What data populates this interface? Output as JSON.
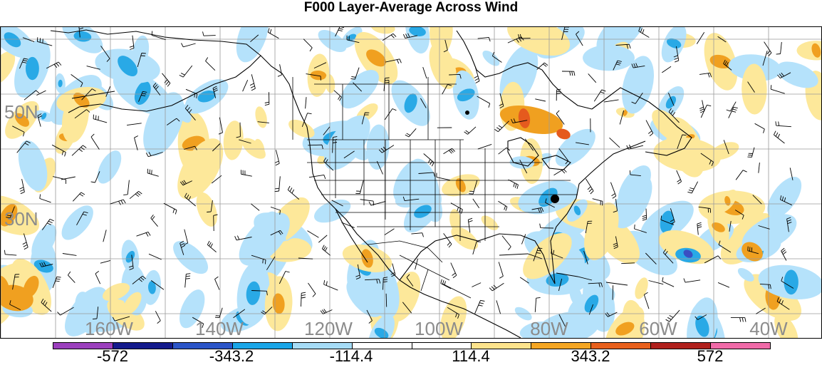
{
  "title": "F000 Layer-Average Across Wind",
  "map": {
    "lat_labels": [
      "50N",
      "30N"
    ],
    "lon_labels": [
      "160W",
      "140W",
      "120W",
      "100W",
      "80W",
      "60W",
      "40W"
    ]
  },
  "colorbar": {
    "labels": [
      "-572",
      "-343.2",
      "-114.4",
      "114.4",
      "343.2",
      "572"
    ],
    "colors": [
      "#9b3fbd",
      "#141a8c",
      "#2b55c8",
      "#1aa6e8",
      "#a6dcf7",
      "#ffffff",
      "#ffffff",
      "#fde38c",
      "#f5a623",
      "#e8601c",
      "#b0201c",
      "#f06aa8"
    ]
  },
  "colors": {
    "grid": "#9a9a9a",
    "coast": "#000000",
    "light_blue": "#b5e2fb",
    "blue": "#29a9e6",
    "dark_blue": "#3a4fc2",
    "light_yellow": "#fde89a",
    "orange": "#f0a020",
    "red": "#e55a1e"
  }
}
